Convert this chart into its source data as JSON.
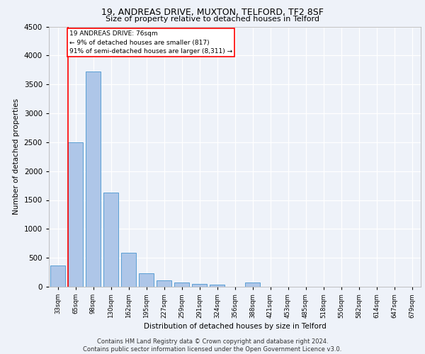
{
  "title1": "19, ANDREAS DRIVE, MUXTON, TELFORD, TF2 8SF",
  "title2": "Size of property relative to detached houses in Telford",
  "xlabel": "Distribution of detached houses by size in Telford",
  "ylabel": "Number of detached properties",
  "categories": [
    "33sqm",
    "65sqm",
    "98sqm",
    "130sqm",
    "162sqm",
    "195sqm",
    "227sqm",
    "259sqm",
    "291sqm",
    "324sqm",
    "356sqm",
    "388sqm",
    "421sqm",
    "453sqm",
    "485sqm",
    "518sqm",
    "550sqm",
    "582sqm",
    "614sqm",
    "647sqm",
    "679sqm"
  ],
  "values": [
    370,
    2500,
    3720,
    1630,
    590,
    230,
    110,
    70,
    55,
    40,
    0,
    70,
    0,
    0,
    0,
    0,
    0,
    0,
    0,
    0,
    0
  ],
  "bar_color": "#aec6e8",
  "bar_edge_color": "#5a9fd4",
  "annotation_box_text": "19 ANDREAS DRIVE: 76sqm\n← 9% of detached houses are smaller (817)\n91% of semi-detached houses are larger (8,311) →",
  "red_line_bin_index": 1,
  "ylim": [
    0,
    4500
  ],
  "yticks": [
    0,
    500,
    1000,
    1500,
    2000,
    2500,
    3000,
    3500,
    4000,
    4500
  ],
  "footer": "Contains HM Land Registry data © Crown copyright and database right 2024.\nContains public sector information licensed under the Open Government Licence v3.0.",
  "bg_color": "#eef2f9",
  "plot_bg_color": "#eef2f9"
}
